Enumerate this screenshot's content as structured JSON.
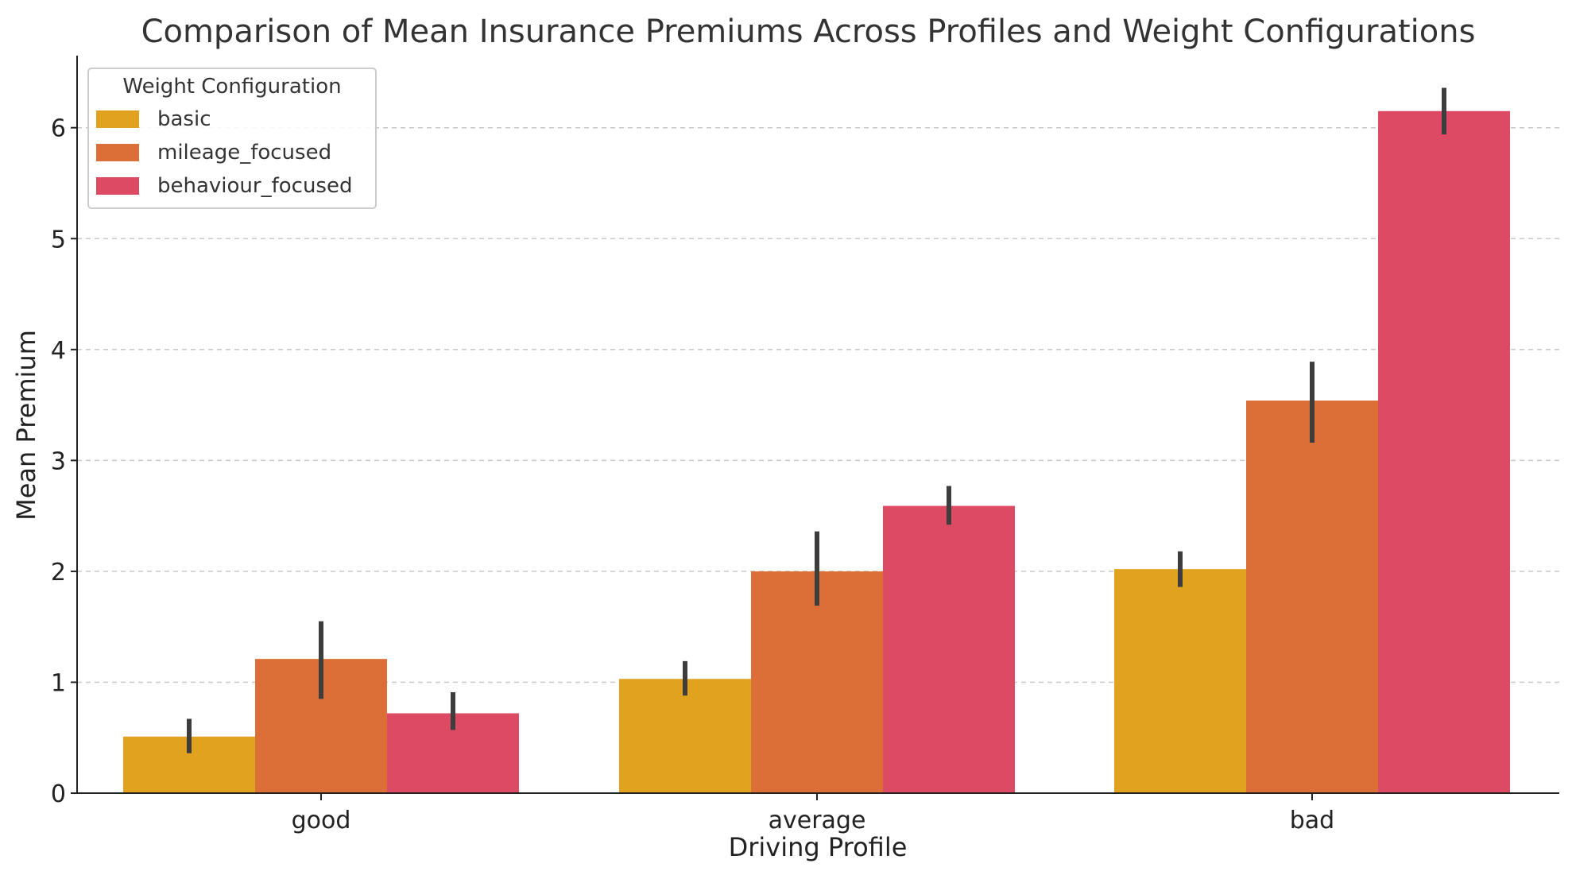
{
  "chart_data": {
    "type": "bar",
    "title": "Comparison of Mean Insurance Premiums Across Profiles and Weight Configurations",
    "xlabel": "Driving Profile",
    "ylabel": "Mean Premium",
    "categories": [
      "good",
      "average",
      "bad"
    ],
    "ylim": [
      0,
      6.65
    ],
    "yticks": [
      "0",
      "1",
      "2",
      "3",
      "4",
      "5",
      "6"
    ],
    "grid": "horizontal-dashed",
    "legend": {
      "title": "Weight Configuration",
      "placement": "top-left"
    },
    "series": [
      {
        "name": "basic",
        "color": "#e1a21f",
        "values": [
          0.51,
          1.03,
          2.02
        ],
        "error_low": [
          0.36,
          0.88,
          1.86
        ],
        "error_high": [
          0.67,
          1.19,
          2.18
        ]
      },
      {
        "name": "mileage_focused",
        "color": "#db6f37",
        "values": [
          1.21,
          2.0,
          3.54
        ],
        "error_low": [
          0.85,
          1.69,
          3.16
        ],
        "error_high": [
          1.55,
          2.36,
          3.89
        ]
      },
      {
        "name": "behaviour_focused",
        "color": "#dd4a64",
        "values": [
          0.72,
          2.59,
          6.15
        ],
        "error_low": [
          0.57,
          2.42,
          5.94
        ],
        "error_high": [
          0.91,
          2.77,
          6.36
        ]
      }
    ]
  }
}
